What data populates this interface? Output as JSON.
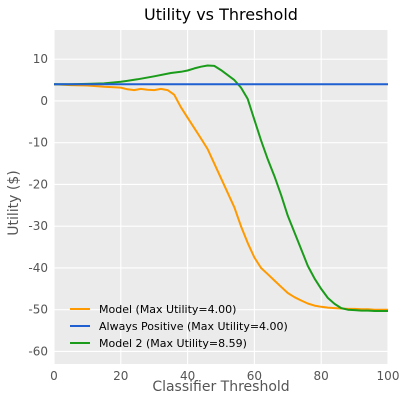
{
  "chart_data": {
    "type": "line",
    "title": "Utility vs Threshold",
    "xlabel": "Classifier Threshold",
    "ylabel": "Utility ($)",
    "xlim": [
      0,
      100
    ],
    "ylim": [
      -63,
      17
    ],
    "xticks": [
      0,
      20,
      40,
      60,
      80,
      100
    ],
    "yticks": [
      -60,
      -50,
      -40,
      -30,
      -20,
      -10,
      0,
      10
    ],
    "grid": true,
    "legend_position": "bottom-left",
    "series": [
      {
        "name": "Model (Max Utility=4.00)",
        "color": "#ff9900",
        "x": [
          0,
          5,
          10,
          15,
          18,
          20,
          22,
          24,
          26,
          28,
          30,
          32,
          34,
          36,
          38,
          40,
          42,
          44,
          46,
          48,
          50,
          52,
          54,
          56,
          58,
          60,
          62,
          64,
          66,
          68,
          70,
          72,
          74,
          76,
          78,
          80,
          82,
          84,
          86,
          88,
          90,
          92,
          94,
          96,
          98,
          100
        ],
        "values": [
          4,
          3.8,
          3.7,
          3.4,
          3.3,
          3.2,
          2.8,
          2.6,
          2.9,
          2.7,
          2.6,
          2.9,
          2.6,
          1.5,
          -1.5,
          -4,
          -6.5,
          -9,
          -11.5,
          -15,
          -18.5,
          -22,
          -25.5,
          -30,
          -34,
          -37.5,
          -40,
          -41.5,
          -43,
          -44.5,
          -46,
          -47,
          -47.8,
          -48.5,
          -49,
          -49.3,
          -49.5,
          -49.6,
          -49.7,
          -49.8,
          -49.8,
          -49.9,
          -49.9,
          -50,
          -50,
          -50
        ]
      },
      {
        "name": "Always Positive (Max Utility=4.00)",
        "color": "#1f5fd1",
        "x": [
          0,
          100
        ],
        "values": [
          4,
          4
        ]
      },
      {
        "name": "Model 2 (Max Utility=8.59)",
        "color": "#1a9c1a",
        "x": [
          0,
          5,
          10,
          15,
          20,
          25,
          30,
          35,
          38,
          40,
          42,
          44,
          46,
          48,
          50,
          52,
          54,
          56,
          58,
          60,
          62,
          64,
          66,
          68,
          70,
          72,
          74,
          76,
          78,
          80,
          82,
          84,
          86,
          88,
          90,
          92,
          94,
          96,
          98,
          100
        ],
        "values": [
          4,
          4,
          4.1,
          4.2,
          4.6,
          5.2,
          5.9,
          6.7,
          7,
          7.3,
          7.8,
          8.2,
          8.5,
          8.4,
          7.4,
          6.2,
          5,
          3.2,
          0.5,
          -4.5,
          -9.5,
          -14,
          -18,
          -22.5,
          -27.5,
          -31.5,
          -35.5,
          -39.5,
          -42.5,
          -45,
          -47.2,
          -48.6,
          -49.6,
          -50,
          -50.1,
          -50.2,
          -50.2,
          -50.3,
          -50.3,
          -50.3
        ]
      }
    ]
  }
}
